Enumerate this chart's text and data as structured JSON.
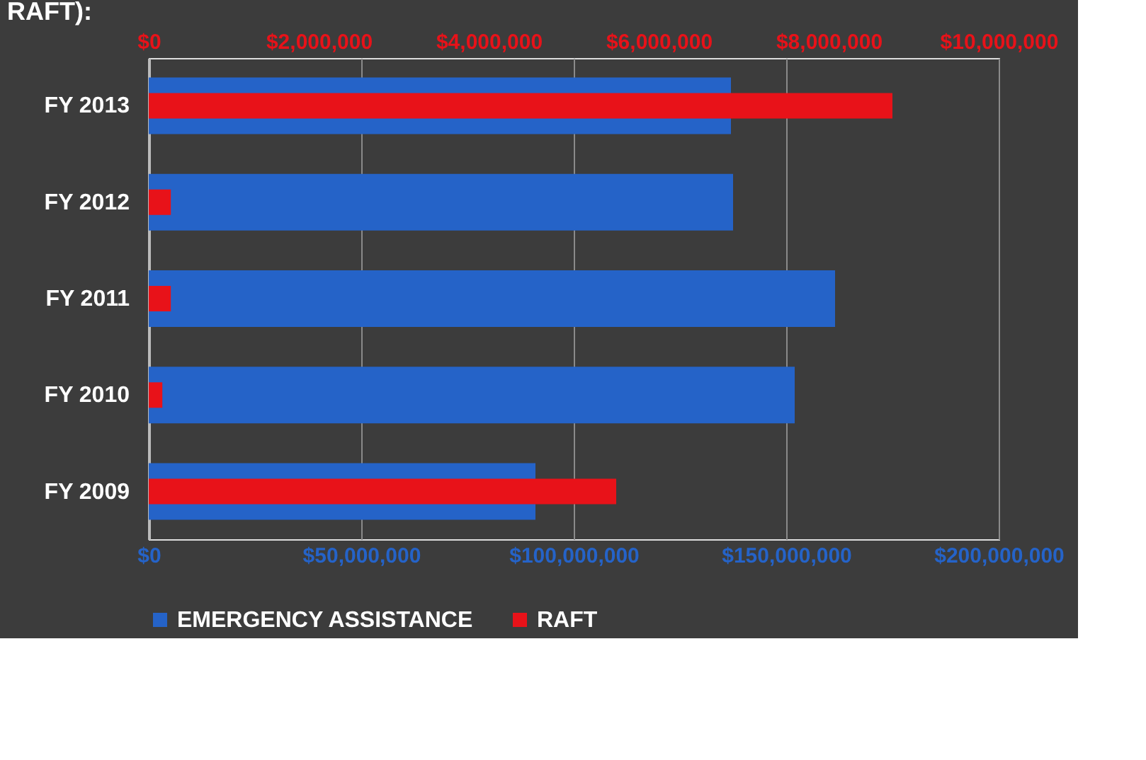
{
  "chart_data": {
    "type": "bar",
    "orientation": "horizontal",
    "title": "RAFT):",
    "categories": [
      "FY 2013",
      "FY 2012",
      "FY 2011",
      "FY 2010",
      "FY 2009"
    ],
    "series": [
      {
        "name": "EMERGENCY ASSISTANCE",
        "color": "#2563c8",
        "values": [
          137000000,
          137500000,
          161500000,
          152000000,
          91000000
        ]
      },
      {
        "name": "RAFT",
        "color": "#e81219",
        "axis": "x2",
        "values": [
          8750000,
          260000,
          260000,
          160000,
          5500000
        ]
      }
    ],
    "xlim": [
      0,
      200000000
    ],
    "xticks": [
      {
        "value": 0,
        "label": "$0"
      },
      {
        "value": 50000000,
        "label": "$50,000,000"
      },
      {
        "value": 100000000,
        "label": "$100,000,000"
      },
      {
        "value": 150000000,
        "label": "$150,000,000"
      },
      {
        "value": 200000000,
        "label": "$200,000,000"
      }
    ],
    "x2lim": [
      0,
      10000000
    ],
    "x2ticks": [
      {
        "value": 0,
        "label": "$0"
      },
      {
        "value": 2000000,
        "label": "$2,000,000"
      },
      {
        "value": 4000000,
        "label": "$4,000,000"
      },
      {
        "value": 6000000,
        "label": "$6,000,000"
      },
      {
        "value": 8000000,
        "label": "$8,000,000"
      },
      {
        "value": 10000000,
        "label": "$10,000,000"
      }
    ],
    "grid": "x",
    "legend": "bottom"
  }
}
